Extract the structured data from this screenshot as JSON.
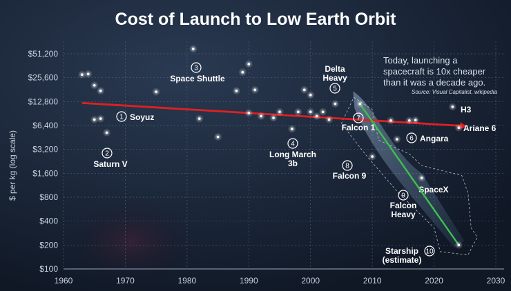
{
  "chart_data": {
    "type": "scatter",
    "title": "Cost of Launch to Low Earth Orbit",
    "ylabel": "$ per kg (log scale)",
    "y_scale": "log2",
    "xlim": [
      1960,
      2030
    ],
    "ylim": [
      100,
      51200
    ],
    "x_ticks": [
      "1960",
      "1970",
      "1980",
      "1990",
      "2000",
      "2010",
      "2020",
      "2030"
    ],
    "y_ticks": [
      "$51,200",
      "$25,600",
      "$12,800",
      "$6,400",
      "$3,200",
      "$1,600",
      "$800",
      "$400",
      "$200",
      "$100"
    ],
    "y_tick_values": [
      51200,
      25600,
      12800,
      6400,
      3200,
      1600,
      800,
      400,
      200,
      100
    ],
    "annotation": "Today, launching a spacecraft is 10x cheaper than it was a decade ago.",
    "source": "Source: Visual Capitalist, wikipedia",
    "region_label": "SpaceX",
    "colors": {
      "background": "#131c2b",
      "trend_red": "#e02020",
      "trend_green": "#3cc24a",
      "point": "#ffffff"
    },
    "labeled_points": [
      {
        "num": "1",
        "name": "Soyuz",
        "x": 1966,
        "y": 7800
      },
      {
        "num": "2",
        "name": "Saturn V",
        "x": 1967,
        "y": 5200
      },
      {
        "num": "3",
        "name": "Space Shuttle",
        "x": 1981,
        "y": 59000
      },
      {
        "num": "4",
        "name": "Long March 3b",
        "x": 1997,
        "y": 5800
      },
      {
        "num": "5",
        "name": "Delta Heavy",
        "x": 2004,
        "y": 12000
      },
      {
        "num": "6",
        "name": "Angara",
        "x": 2014,
        "y": 4300
      },
      {
        "num": "7",
        "name": "Falcon 1",
        "x": 2008,
        "y": 12000
      },
      {
        "num": "8",
        "name": "Falcon 9",
        "x": 2010,
        "y": 2600
      },
      {
        "num": "9",
        "name": "Falcon Heavy",
        "x": 2018,
        "y": 1400
      },
      {
        "num": "10",
        "name": "Starship (estimate)",
        "x": 2024,
        "y": 200
      },
      {
        "num": "",
        "name": "H3",
        "x": 2023,
        "y": 11000
      },
      {
        "num": "",
        "name": "Ariane 6",
        "x": 2024,
        "y": 6000
      }
    ],
    "other_points": [
      {
        "x": 1963,
        "y": 28000
      },
      {
        "x": 1964,
        "y": 28500
      },
      {
        "x": 1965,
        "y": 20500
      },
      {
        "x": 1966,
        "y": 17500
      },
      {
        "x": 1965,
        "y": 7600
      },
      {
        "x": 1975,
        "y": 17000
      },
      {
        "x": 1982,
        "y": 7800
      },
      {
        "x": 1985,
        "y": 4600
      },
      {
        "x": 1988,
        "y": 17500
      },
      {
        "x": 1989,
        "y": 30000
      },
      {
        "x": 1990,
        "y": 38000
      },
      {
        "x": 1991,
        "y": 18000
      },
      {
        "x": 1990,
        "y": 9200
      },
      {
        "x": 1992,
        "y": 8400
      },
      {
        "x": 1994,
        "y": 8000
      },
      {
        "x": 1995,
        "y": 9500
      },
      {
        "x": 1998,
        "y": 9500
      },
      {
        "x": 1999,
        "y": 18000
      },
      {
        "x": 2000,
        "y": 15500
      },
      {
        "x": 2000,
        "y": 9500
      },
      {
        "x": 2001,
        "y": 8400
      },
      {
        "x": 2002,
        "y": 9500
      },
      {
        "x": 2003,
        "y": 7600
      },
      {
        "x": 2013,
        "y": 7400
      },
      {
        "x": 2016,
        "y": 7400
      },
      {
        "x": 2017,
        "y": 7500
      }
    ],
    "series": [
      {
        "values": [
          [
            1963,
            12300
          ],
          [
            2025,
            6300
          ]
        ]
      },
      {
        "values": [
          [
            2008,
            12000
          ],
          [
            2024,
            200
          ]
        ]
      }
    ]
  }
}
